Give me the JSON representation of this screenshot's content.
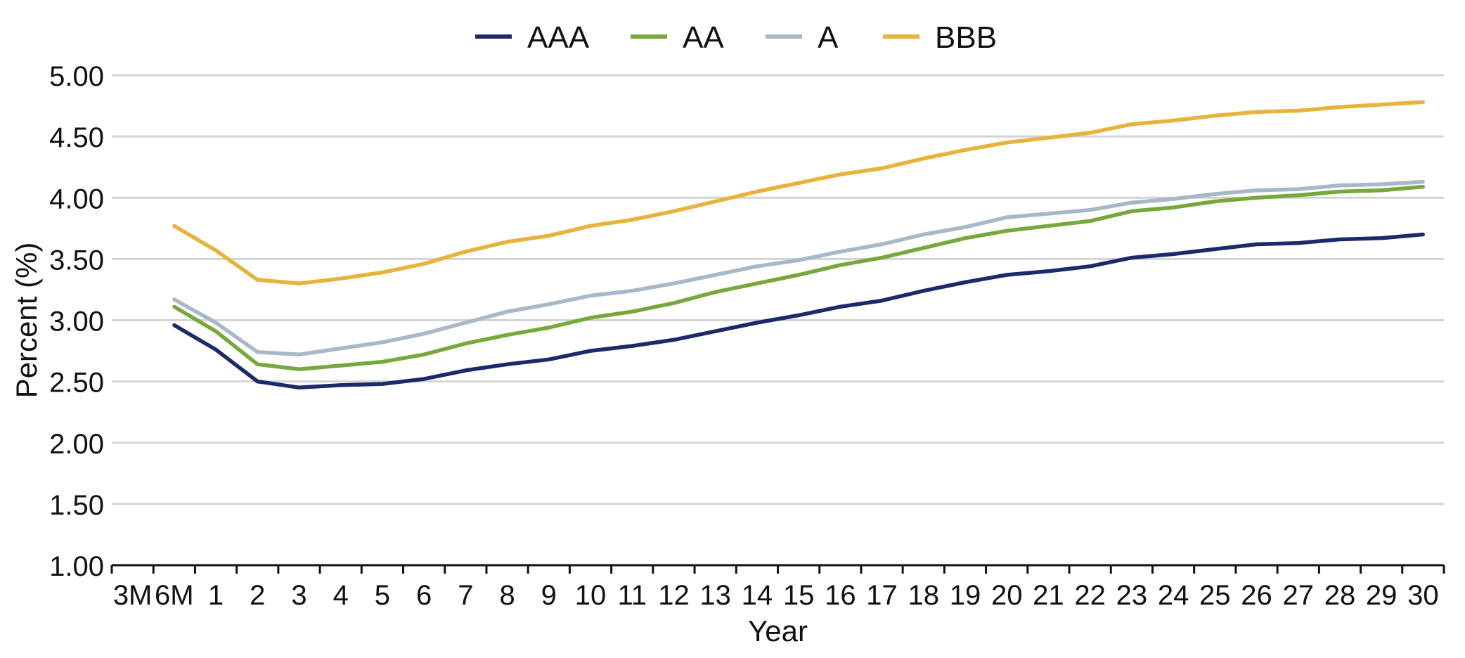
{
  "chart_data": {
    "type": "line",
    "xlabel": "Year",
    "ylabel": "Percent (%)",
    "ylim": [
      1.0,
      5.0
    ],
    "y_ticks": [
      "5.00",
      "4.50",
      "4.00",
      "3.50",
      "3.00",
      "2.50",
      "2.00",
      "1.50",
      "1.00"
    ],
    "grid": true,
    "legend_position": "top-center",
    "x": [
      "3M",
      "6M",
      "1",
      "2",
      "3",
      "4",
      "5",
      "6",
      "7",
      "8",
      "9",
      "10",
      "11",
      "12",
      "13",
      "14",
      "15",
      "16",
      "17",
      "18",
      "19",
      "20",
      "21",
      "22",
      "23",
      "24",
      "25",
      "26",
      "27",
      "28",
      "29",
      "30"
    ],
    "series": [
      {
        "name": "AAA",
        "color": "#1b2a6b",
        "values": [
          null,
          2.96,
          2.76,
          2.5,
          2.45,
          2.47,
          2.48,
          2.52,
          2.59,
          2.64,
          2.68,
          2.75,
          2.79,
          2.84,
          2.91,
          2.98,
          3.04,
          3.11,
          3.16,
          3.24,
          3.31,
          3.37,
          3.4,
          3.44,
          3.51,
          3.54,
          3.58,
          3.62,
          3.63,
          3.66,
          3.67,
          3.7
        ]
      },
      {
        "name": "AA",
        "color": "#77a83b",
        "values": [
          null,
          3.11,
          2.91,
          2.64,
          2.6,
          2.63,
          2.66,
          2.72,
          2.81,
          2.88,
          2.94,
          3.02,
          3.07,
          3.14,
          3.23,
          3.3,
          3.37,
          3.45,
          3.51,
          3.59,
          3.67,
          3.73,
          3.77,
          3.81,
          3.89,
          3.92,
          3.97,
          4.0,
          4.02,
          4.05,
          4.06,
          4.09
        ]
      },
      {
        "name": "A",
        "color": "#a7b8c9",
        "values": [
          null,
          3.17,
          2.98,
          2.74,
          2.72,
          2.77,
          2.82,
          2.89,
          2.98,
          3.07,
          3.13,
          3.2,
          3.24,
          3.3,
          3.37,
          3.44,
          3.49,
          3.56,
          3.62,
          3.7,
          3.76,
          3.84,
          3.87,
          3.9,
          3.96,
          3.99,
          4.03,
          4.06,
          4.07,
          4.1,
          4.11,
          4.13
        ]
      },
      {
        "name": "BBB",
        "color": "#e8b33a",
        "values": [
          null,
          3.77,
          3.57,
          3.33,
          3.3,
          3.34,
          3.39,
          3.46,
          3.56,
          3.64,
          3.69,
          3.77,
          3.82,
          3.89,
          3.97,
          4.05,
          4.12,
          4.19,
          4.24,
          4.32,
          4.39,
          4.45,
          4.49,
          4.53,
          4.6,
          4.63,
          4.67,
          4.7,
          4.71,
          4.74,
          4.76,
          4.78
        ]
      }
    ]
  }
}
